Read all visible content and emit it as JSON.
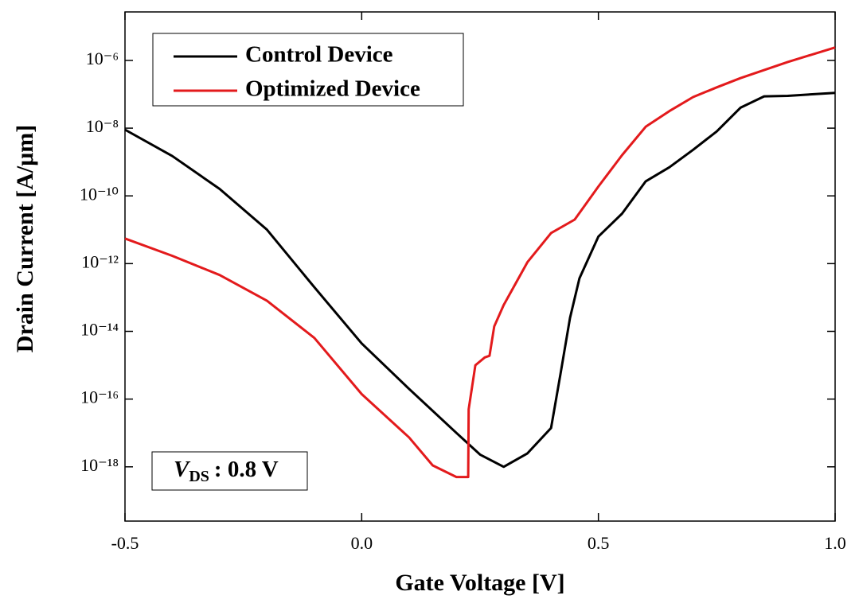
{
  "chart_data": {
    "type": "line",
    "xlabel": "Gate Voltage [V]",
    "ylabel": "Drain Current [A/μm]",
    "ylog": true,
    "xlim": [
      -0.5,
      1.0
    ],
    "ylim": [
      2.5e-20,
      2.7e-05
    ],
    "xticks": [
      -0.5,
      {
        "value": 0,
        "label": "0.0"
      },
      0.5,
      {
        "value": 1,
        "label": "1.0"
      }
    ],
    "yticks": [
      {
        "value": 1e-18,
        "label": "10⁻¹⁸"
      },
      {
        "value": 1e-16,
        "label": "10⁻¹⁶"
      },
      {
        "value": 1e-14,
        "label": "10⁻¹⁴"
      },
      {
        "value": 1e-12,
        "label": "10⁻¹²"
      },
      {
        "value": 1e-10,
        "label": "10⁻¹⁰"
      },
      {
        "value": 1e-08,
        "label": "10⁻⁸"
      },
      {
        "value": 1e-06,
        "label": "10⁻⁶"
      }
    ],
    "legend": "upper left",
    "annotation": {
      "symbol": "V",
      "subscript": "DS",
      "text": ": 0.8 V"
    },
    "series": [
      {
        "name": "Control Device",
        "color": "#000000",
        "x": [
          -0.5,
          -0.4,
          -0.3,
          -0.2,
          -0.1,
          0.0,
          0.1,
          0.2,
          0.25,
          0.3,
          0.35,
          0.4,
          0.42,
          0.44,
          0.46,
          0.5,
          0.55,
          0.6,
          0.65,
          0.7,
          0.75,
          0.8,
          0.85,
          0.9,
          1.0
        ],
        "values": [
          9e-09,
          1.5e-09,
          1.6e-10,
          1e-11,
          2e-13,
          4.4e-15,
          2e-16,
          1e-17,
          2.3e-18,
          1e-18,
          2.5e-18,
          1.4e-17,
          5.6e-16,
          2.5e-14,
          3.7e-13,
          6.3e-12,
          3e-11,
          2.7e-10,
          7e-10,
          2.3e-09,
          8e-09,
          4e-08,
          8.7e-08,
          9e-08,
          1.1e-07
        ]
      },
      {
        "name": "Optimized Device",
        "color": "#e31a1c",
        "x": [
          -0.5,
          -0.4,
          -0.3,
          -0.2,
          -0.1,
          0.0,
          0.1,
          0.15,
          0.2,
          0.225,
          0.226,
          0.24,
          0.26,
          0.27,
          0.28,
          0.3,
          0.35,
          0.4,
          0.45,
          0.5,
          0.55,
          0.6,
          0.65,
          0.7,
          0.75,
          0.8,
          0.9,
          1.0
        ],
        "values": [
          5.5e-12,
          1.7e-12,
          4.6e-13,
          8e-14,
          6.4e-15,
          1.4e-16,
          7.4e-18,
          1.1e-18,
          5e-19,
          5e-19,
          5e-17,
          1e-15,
          1.7e-15,
          1.9e-15,
          1.4e-14,
          6e-14,
          1.1e-12,
          8e-12,
          2e-11,
          1.9e-10,
          1.6e-09,
          1.1e-08,
          3.2e-08,
          8.3e-08,
          1.6e-07,
          3e-07,
          9e-07,
          2.4e-06
        ]
      }
    ]
  }
}
